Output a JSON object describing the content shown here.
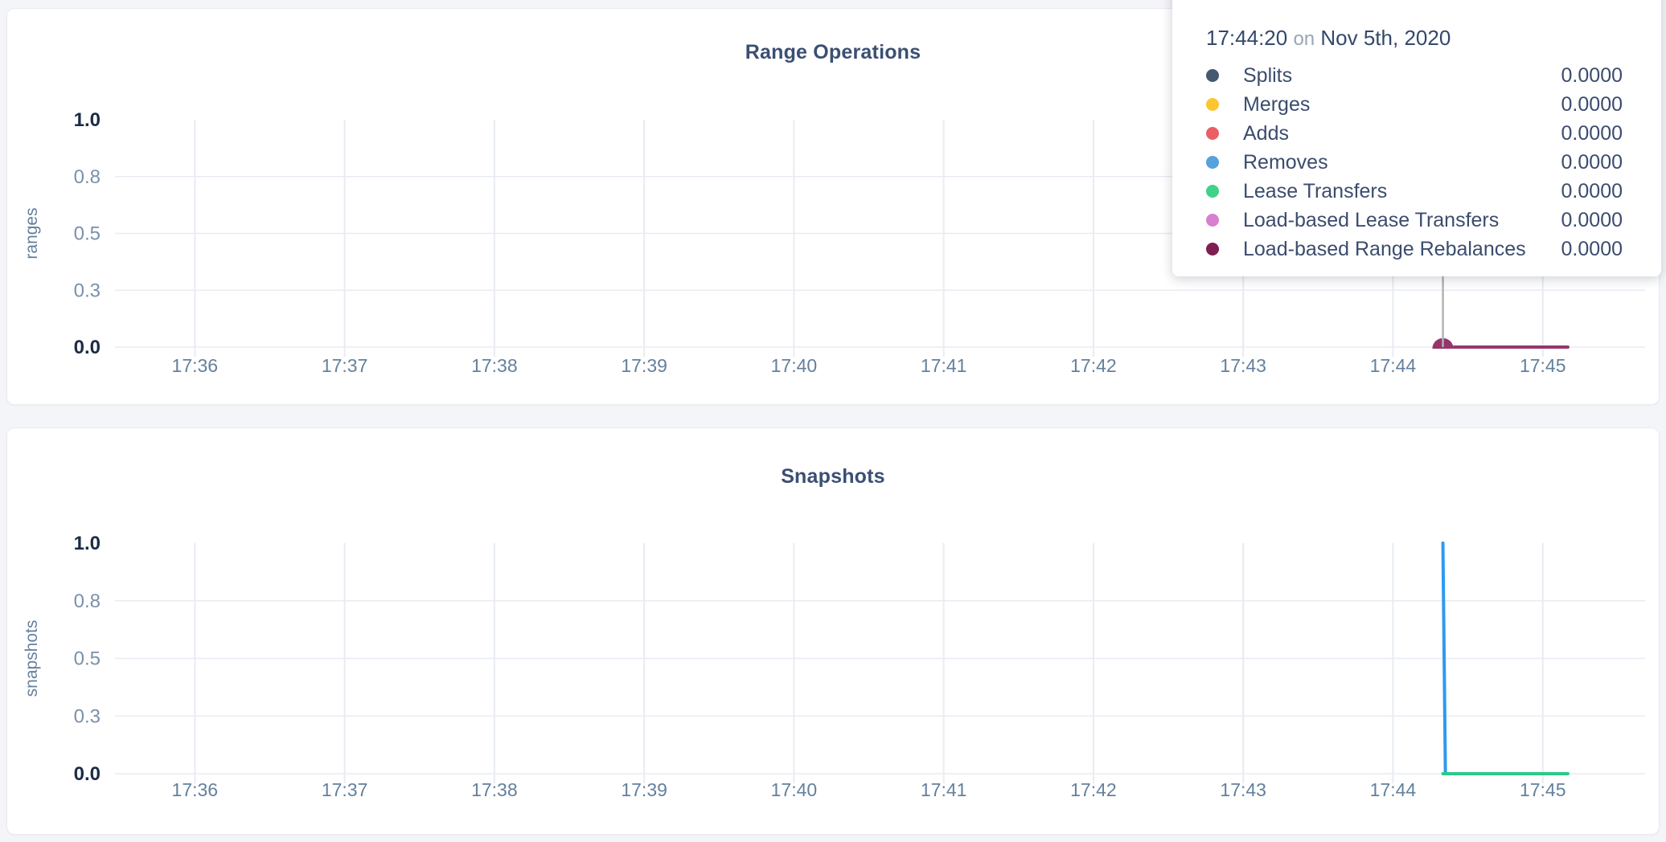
{
  "page": {
    "background": "#f4f5f9"
  },
  "colors": {
    "card_bg": "#ffffff",
    "title": "#3a4f73",
    "axis_dark": "#1c2b45",
    "axis_muted": "#7b90a9",
    "axis_title": "#64809c",
    "grid": "#e8ebf2",
    "crosshair": "#b3b3b3",
    "tooltip_time": "#33486b",
    "tooltip_muted": "#9aa5b5"
  },
  "tooltip": {
    "time": "17:44:20",
    "conjunction": "on",
    "date": "Nov 5th, 2020",
    "rows": [
      {
        "name": "Splits",
        "color": "#475872",
        "value": "0.0000"
      },
      {
        "name": "Merges",
        "color": "#fdc530",
        "value": "0.0000"
      },
      {
        "name": "Adds",
        "color": "#ea5f65",
        "value": "0.0000"
      },
      {
        "name": "Removes",
        "color": "#55a2dc",
        "value": "0.0000"
      },
      {
        "name": "Lease Transfers",
        "color": "#40d18a",
        "value": "0.0000"
      },
      {
        "name": "Load-based Lease Transfers",
        "color": "#d97fd0",
        "value": "0.0000"
      },
      {
        "name": "Load-based Range Rebalances",
        "color": "#7e1e52",
        "value": "0.0000"
      }
    ]
  },
  "chart_data": [
    {
      "type": "line",
      "title": "Range Operations",
      "ylabel": "ranges",
      "ylim": [
        0,
        1
      ],
      "grid": true,
      "x_domain": [
        "17:35:28",
        "17:45:41"
      ],
      "x_ticks": [
        {
          "t": "17:36:00",
          "label": "17:36"
        },
        {
          "t": "17:37:00",
          "label": "17:37"
        },
        {
          "t": "17:38:00",
          "label": "17:38"
        },
        {
          "t": "17:39:00",
          "label": "17:39"
        },
        {
          "t": "17:40:00",
          "label": "17:40"
        },
        {
          "t": "17:41:00",
          "label": "17:41"
        },
        {
          "t": "17:42:00",
          "label": "17:42"
        },
        {
          "t": "17:43:00",
          "label": "17:43"
        },
        {
          "t": "17:44:00",
          "label": "17:44"
        },
        {
          "t": "17:45:00",
          "label": "17:45"
        }
      ],
      "y_ticks": [
        {
          "v": 0,
          "label": "0.0",
          "emphasis": true
        },
        {
          "v": 0.25,
          "label": "0.3",
          "emphasis": false
        },
        {
          "v": 0.5,
          "label": "0.5",
          "emphasis": false
        },
        {
          "v": 0.75,
          "label": "0.8",
          "emphasis": false
        },
        {
          "v": 1,
          "label": "1.0",
          "emphasis": true
        }
      ],
      "crosshair": {
        "t": "17:44:20",
        "color": "#b3b3b3"
      },
      "hover_marker": {
        "t": "17:44:20",
        "v": 0
      },
      "series": [
        {
          "name": "Splits",
          "color": "#475872",
          "points": [
            [
              "17:44:20",
              0
            ],
            [
              "17:45:10",
              0
            ]
          ]
        },
        {
          "name": "Merges",
          "color": "#fdc530",
          "points": [
            [
              "17:44:20",
              0
            ],
            [
              "17:45:10",
              0
            ]
          ]
        },
        {
          "name": "Adds",
          "color": "#ea5f65",
          "points": [
            [
              "17:44:20",
              0
            ],
            [
              "17:45:10",
              0
            ]
          ]
        },
        {
          "name": "Removes",
          "color": "#55a2dc",
          "points": [
            [
              "17:44:20",
              0
            ],
            [
              "17:45:10",
              0
            ]
          ]
        },
        {
          "name": "Lease Transfers",
          "color": "#40d18a",
          "points": [
            [
              "17:44:20",
              0
            ],
            [
              "17:45:10",
              0
            ]
          ]
        },
        {
          "name": "Load-based Lease Transfers",
          "color": "#d97fd0",
          "points": [
            [
              "17:44:20",
              0
            ],
            [
              "17:45:10",
              0
            ]
          ]
        },
        {
          "name": "Load-based Range Rebalances",
          "color": "#96356b",
          "points": [
            [
              "17:44:20",
              0
            ],
            [
              "17:45:10",
              0
            ]
          ]
        }
      ]
    },
    {
      "type": "line",
      "title": "Snapshots",
      "ylabel": "snapshots",
      "ylim": [
        0,
        1
      ],
      "grid": true,
      "x_domain": [
        "17:35:28",
        "17:45:41"
      ],
      "x_ticks": [
        {
          "t": "17:36:00",
          "label": "17:36"
        },
        {
          "t": "17:37:00",
          "label": "17:37"
        },
        {
          "t": "17:38:00",
          "label": "17:38"
        },
        {
          "t": "17:39:00",
          "label": "17:39"
        },
        {
          "t": "17:40:00",
          "label": "17:40"
        },
        {
          "t": "17:41:00",
          "label": "17:41"
        },
        {
          "t": "17:42:00",
          "label": "17:42"
        },
        {
          "t": "17:43:00",
          "label": "17:43"
        },
        {
          "t": "17:44:00",
          "label": "17:44"
        },
        {
          "t": "17:45:00",
          "label": "17:45"
        }
      ],
      "y_ticks": [
        {
          "v": 0,
          "label": "0.0",
          "emphasis": true
        },
        {
          "v": 0.25,
          "label": "0.3",
          "emphasis": false
        },
        {
          "v": 0.5,
          "label": "0.5",
          "emphasis": false
        },
        {
          "v": 0.75,
          "label": "0.8",
          "emphasis": false
        },
        {
          "v": 1,
          "label": "1.0",
          "emphasis": true
        }
      ],
      "series": [
        {
          "name": "blue-series",
          "color": "#2d9af0",
          "points": [
            [
              "17:44:20",
              1
            ],
            [
              "17:44:21",
              0
            ],
            [
              "17:45:10",
              0
            ]
          ]
        },
        {
          "name": "green-series",
          "color": "#2bc98a",
          "points": [
            [
              "17:44:20",
              0
            ],
            [
              "17:45:10",
              0
            ]
          ]
        }
      ]
    }
  ]
}
